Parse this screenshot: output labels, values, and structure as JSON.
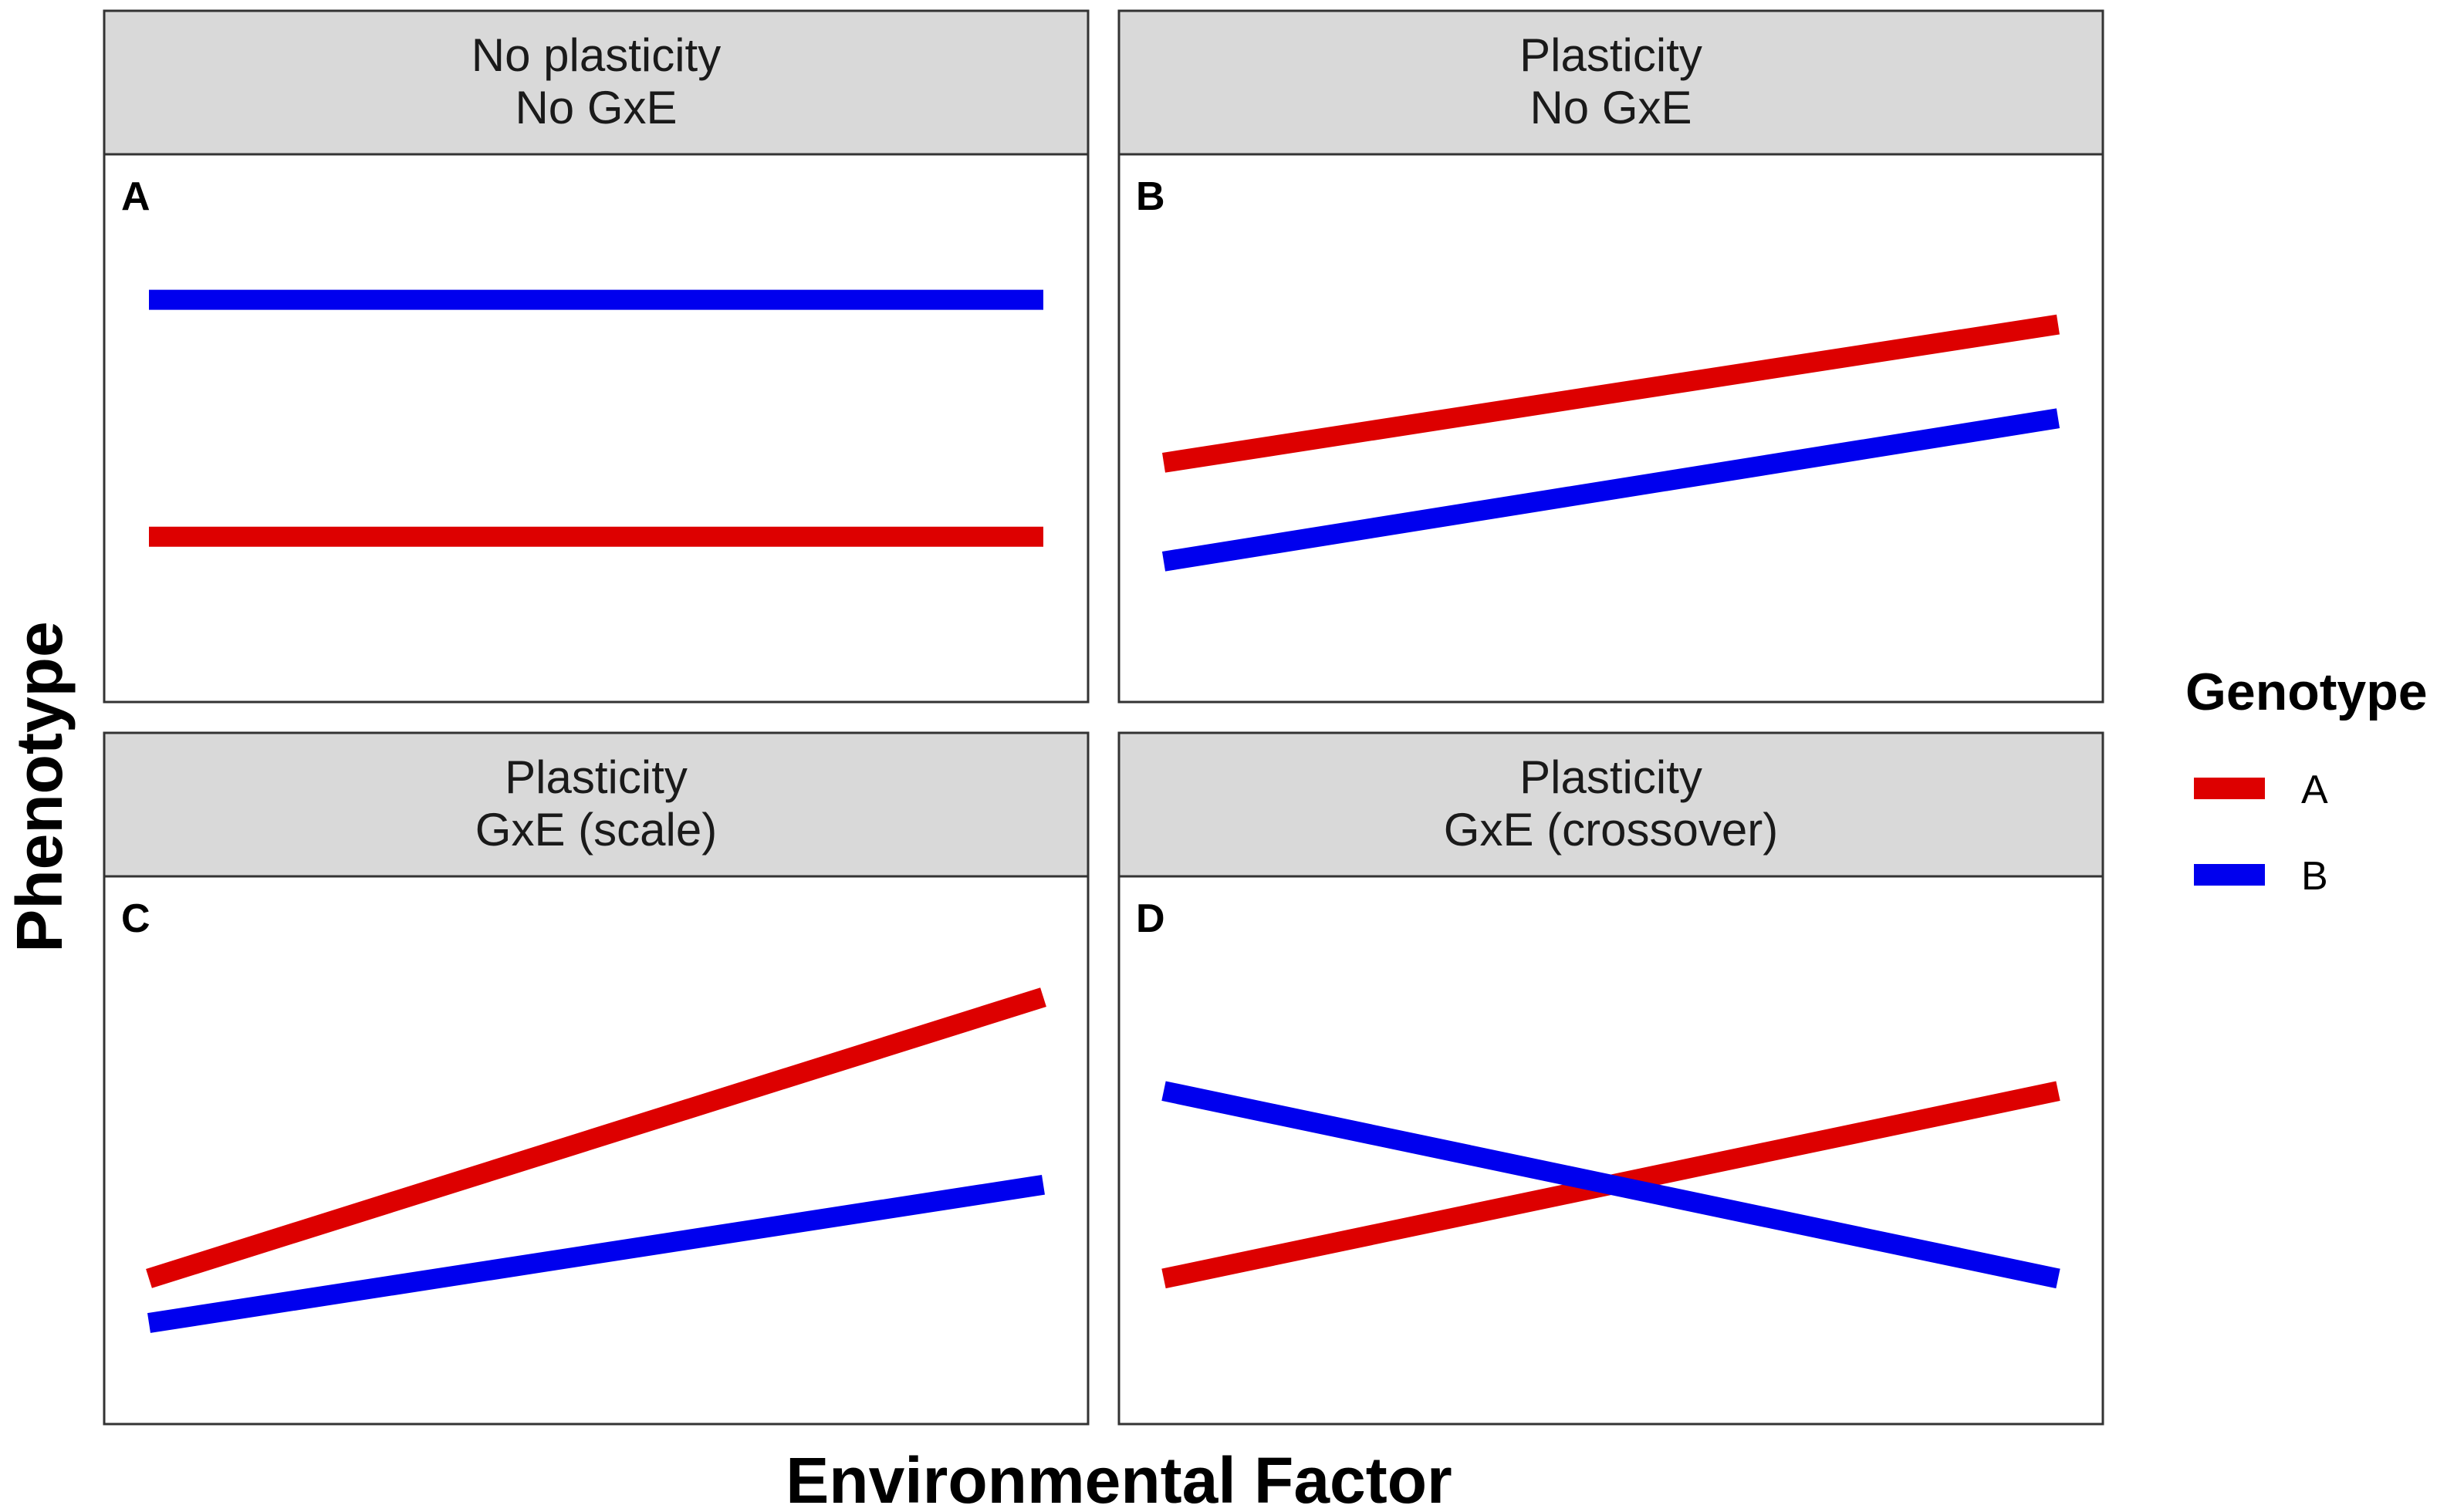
{
  "chart_data": {
    "type": "line",
    "xlabel": "Environmental Factor",
    "ylabel": "Phenotype",
    "x": [
      0,
      1
    ],
    "ylim": [
      0,
      1
    ],
    "grid": false,
    "legend": {
      "title": "Genotype",
      "placement": "right",
      "entries": [
        {
          "label": "A",
          "color": "#dd0000"
        },
        {
          "label": "B",
          "color": "#0000ee"
        }
      ]
    },
    "panels": [
      {
        "tag": "A",
        "strip": [
          "No plasticity",
          "No GxE"
        ],
        "series": [
          {
            "name": "A",
            "values": [
              0.28,
              0.28
            ]
          },
          {
            "name": "B",
            "values": [
              0.76,
              0.76
            ]
          }
        ]
      },
      {
        "tag": "B",
        "strip": [
          "Plasticity",
          "No GxE"
        ],
        "series": [
          {
            "name": "A",
            "values": [
              0.43,
              0.71
            ]
          },
          {
            "name": "B",
            "values": [
              0.23,
              0.52
            ]
          }
        ]
      },
      {
        "tag": "C",
        "strip": [
          "Plasticity",
          "GxE (scale)"
        ],
        "series": [
          {
            "name": "A",
            "values": [
              0.24,
              0.81
            ]
          },
          {
            "name": "B",
            "values": [
              0.15,
              0.43
            ]
          }
        ]
      },
      {
        "tag": "D",
        "strip": [
          "Plasticity",
          "GxE (crossover)"
        ],
        "series": [
          {
            "name": "A",
            "values": [
              0.24,
              0.62
            ]
          },
          {
            "name": "B",
            "values": [
              0.62,
              0.24
            ]
          }
        ]
      }
    ]
  }
}
